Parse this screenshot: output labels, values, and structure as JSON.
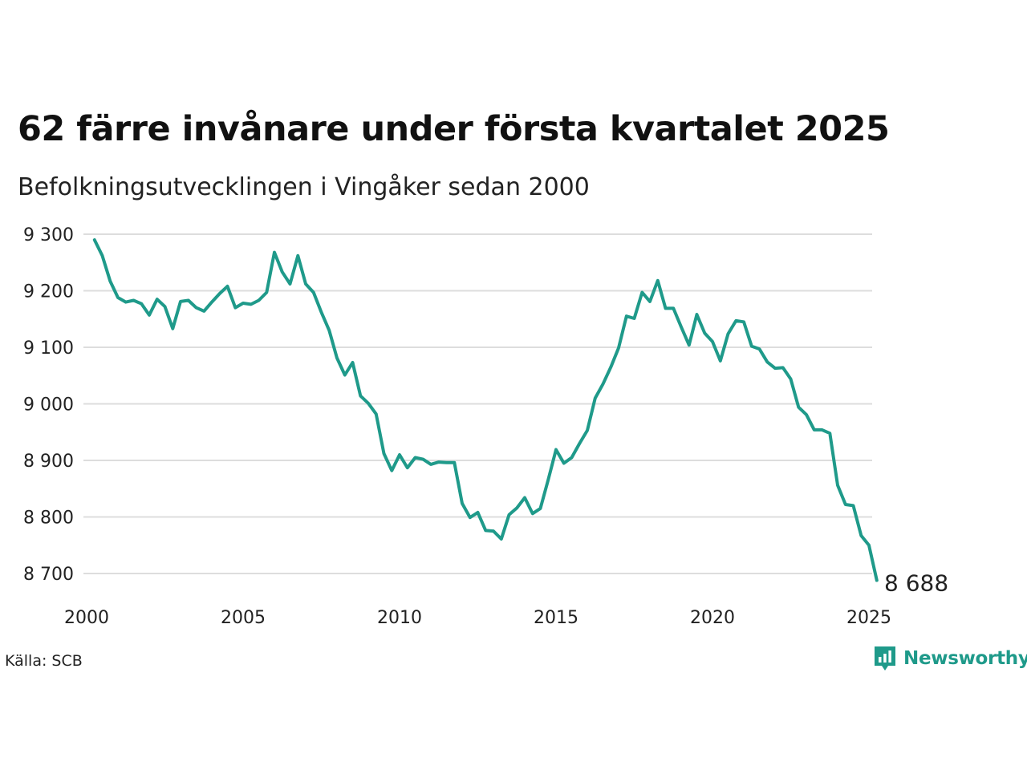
{
  "title": "62 färre invånare under första kvartalet 2025",
  "subtitle": "Befolkningsutvecklingen i Vingåker sedan 2000",
  "source": "Källa: SCB",
  "brand": {
    "name": "Newsworthy",
    "color": "#1f9a8a"
  },
  "colors": {
    "line": "#1f9a8a",
    "grid": "#dddddd"
  },
  "chart_data": {
    "type": "line",
    "title": "62 färre invånare under första kvartalet 2025",
    "subtitle": "Befolkningsutvecklingen i Vingåker sedan 2000",
    "xlabel": "",
    "ylabel": "",
    "grid": true,
    "legend": "none",
    "xlim": [
      2000,
      2025
    ],
    "ylim": [
      8700,
      9300
    ],
    "x_ticks": [
      {
        "value": 2000,
        "label": "2000"
      },
      {
        "value": 2005,
        "label": "2005"
      },
      {
        "value": 2010,
        "label": "2010"
      },
      {
        "value": 2015,
        "label": "2015"
      },
      {
        "value": 2020,
        "label": "2020"
      },
      {
        "value": 2025,
        "label": "2025"
      }
    ],
    "y_ticks": [
      {
        "value": 9300,
        "label": "9 300"
      },
      {
        "value": 9200,
        "label": "9 200"
      },
      {
        "value": 9100,
        "label": "9 100"
      },
      {
        "value": 9000,
        "label": "9 000"
      },
      {
        "value": 8900,
        "label": "8 900"
      },
      {
        "value": 8800,
        "label": "8 800"
      },
      {
        "value": 8700,
        "label": "8 700"
      }
    ],
    "end_label": "8 688",
    "series": [
      {
        "x": [
          2000.25,
          2000.5,
          2000.75,
          2001.0,
          2001.25,
          2001.5,
          2001.75,
          2002.0,
          2002.25,
          2002.5,
          2002.75,
          2003.0,
          2003.25,
          2003.5,
          2003.75,
          2004.0,
          2004.25,
          2004.5,
          2004.75,
          2005.0,
          2005.25,
          2005.5,
          2005.75,
          2006.0,
          2006.25,
          2006.5,
          2006.75,
          2007.0,
          2007.25,
          2007.5,
          2007.75,
          2008.0,
          2008.25,
          2008.5,
          2008.75,
          2009.0,
          2009.25,
          2009.5,
          2009.75,
          2010.0,
          2010.25,
          2010.5,
          2010.75,
          2011.0,
          2011.25,
          2011.5,
          2011.75,
          2012.0,
          2012.25,
          2012.5,
          2012.75,
          2013.0,
          2013.25,
          2013.5,
          2013.75,
          2014.0,
          2014.25,
          2014.5,
          2014.75,
          2015.0,
          2015.25,
          2015.5,
          2015.75,
          2016.0,
          2016.25,
          2016.5,
          2016.75,
          2017.0,
          2017.25,
          2017.5,
          2017.75,
          2018.0,
          2018.25,
          2018.5,
          2018.75,
          2019.0,
          2019.25,
          2019.5,
          2019.75,
          2020.0,
          2020.25,
          2020.5,
          2020.75,
          2021.0,
          2021.25,
          2021.5,
          2021.75,
          2022.0,
          2022.25,
          2022.5,
          2022.75,
          2023.0,
          2023.25,
          2023.5,
          2023.75,
          2024.0,
          2024.25,
          2024.5,
          2024.75,
          2025.0,
          2025.25
        ],
        "values": [
          9290,
          9262,
          9217,
          9188,
          9180,
          9183,
          9177,
          9157,
          9185,
          9172,
          9133,
          9181,
          9183,
          9170,
          9164,
          9180,
          9195,
          9208,
          9170,
          9178,
          9176,
          9183,
          9197,
          9268,
          9233,
          9212,
          9262,
          9212,
          9197,
          9162,
          9130,
          9081,
          9051,
          9073,
          9014,
          9001,
          8982,
          8912,
          8882,
          8910,
          8887,
          8905,
          8902,
          8893,
          8897,
          8896,
          8896,
          8824,
          8799,
          8808,
          8776,
          8775,
          8761,
          8804,
          8816,
          8834,
          8806,
          8815,
          8866,
          8919,
          8895,
          8905,
          8930,
          8953,
          9010,
          9035,
          9065,
          9099,
          9155,
          9151,
          9197,
          9181,
          9218,
          9169,
          9169,
          9136,
          9104,
          9158,
          9125,
          9110,
          9076,
          9124,
          9147,
          9145,
          9102,
          9097,
          9074,
          9063,
          9064,
          9044,
          8994,
          8981,
          8954,
          8954,
          8948,
          8856,
          8822,
          8820,
          8767,
          8750,
          8688
        ]
      }
    ]
  }
}
